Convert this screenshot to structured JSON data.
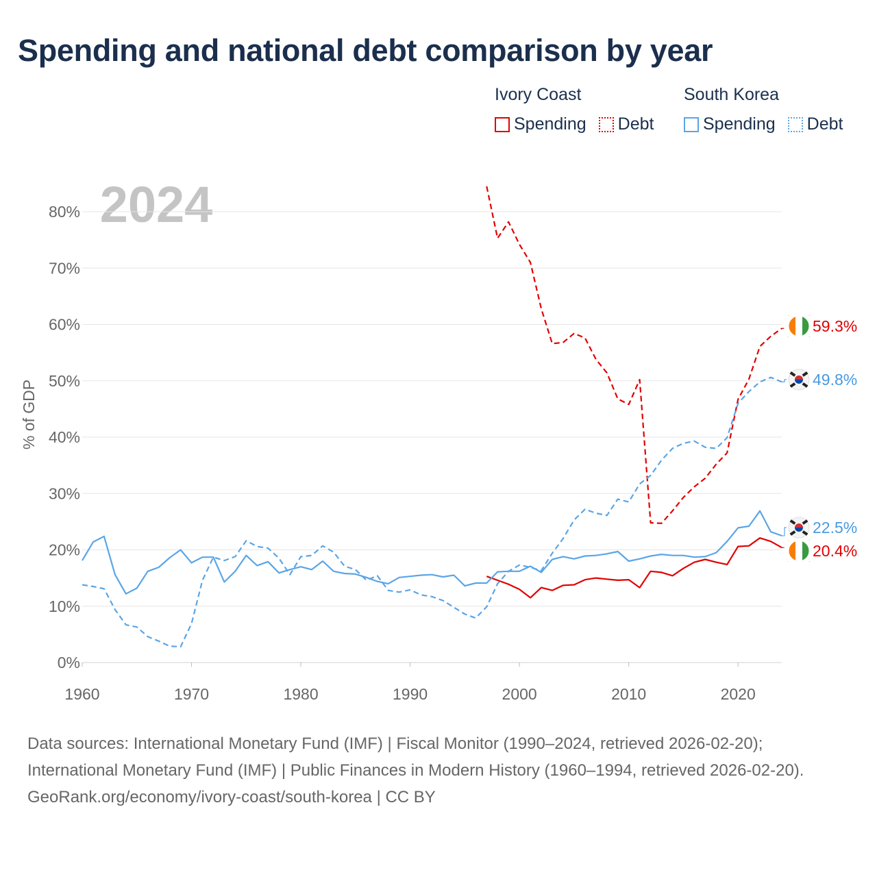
{
  "title": "Spending and national debt comparison by year",
  "legend": {
    "groups": [
      {
        "country": "Ivory Coast",
        "spending_label": "Spending",
        "debt_label": "Debt",
        "color": "#e00000"
      },
      {
        "country": "South Korea",
        "spending_label": "Spending",
        "debt_label": "Debt",
        "color": "#5aa5e6"
      }
    ]
  },
  "footer": {
    "sources": "Data sources: International Monetary Fund (IMF) | Fiscal Monitor (1990–2024, retrieved 2026-02-20); International Monetary Fund (IMF) | Public Finances in Modern History (1960–1994, retrieved 2026-02-20).",
    "url": "GeoRank.org/economy/ivory-coast/south-korea | CC BY"
  },
  "chart_data": {
    "type": "line",
    "year_watermark": "2024",
    "ylabel": "% of GDP",
    "xlabel": "",
    "xlim": [
      1960,
      2024
    ],
    "ylim": [
      0,
      80
    ],
    "x_ticks": [
      1960,
      1970,
      1980,
      1990,
      2000,
      2010,
      2020
    ],
    "y_ticks": [
      0,
      10,
      20,
      30,
      40,
      50,
      60,
      70,
      80
    ],
    "y_tick_labels": [
      "0%",
      "10%",
      "20%",
      "30%",
      "40%",
      "50%",
      "60%",
      "70%",
      "80%"
    ],
    "series": [
      {
        "name": "Ivory Coast Spending",
        "country": "Ivory Coast",
        "metric": "Spending",
        "color": "#e00000",
        "dashed": false,
        "end_label": "20.4%",
        "x": [
          1997,
          1998,
          1999,
          2000,
          2001,
          2002,
          2003,
          2004,
          2005,
          2006,
          2007,
          2008,
          2009,
          2010,
          2011,
          2012,
          2013,
          2014,
          2015,
          2016,
          2017,
          2018,
          2019,
          2020,
          2021,
          2022,
          2023,
          2024
        ],
        "values": [
          15.3,
          14.6,
          13.9,
          13.0,
          11.5,
          13.3,
          12.8,
          13.7,
          13.8,
          14.7,
          15.0,
          14.8,
          14.6,
          14.7,
          13.3,
          16.2,
          16.0,
          15.4,
          16.7,
          17.8,
          18.3,
          17.8,
          17.4,
          20.6,
          20.7,
          22.1,
          21.5,
          20.4
        ]
      },
      {
        "name": "Ivory Coast Debt",
        "country": "Ivory Coast",
        "metric": "Debt",
        "color": "#e00000",
        "dashed": true,
        "end_label": "59.3%",
        "x": [
          1997,
          1998,
          1999,
          2000,
          2001,
          2002,
          2003,
          2004,
          2005,
          2006,
          2007,
          2008,
          2009,
          2010,
          2011,
          2012,
          2013,
          2014,
          2015,
          2016,
          2017,
          2018,
          2019,
          2020,
          2021,
          2022,
          2023,
          2024
        ],
        "values": [
          84.5,
          75.3,
          78.2,
          74.2,
          71.0,
          62.8,
          56.6,
          56.8,
          58.4,
          57.6,
          53.8,
          51.4,
          46.8,
          45.8,
          50.2,
          24.8,
          24.7,
          26.9,
          29.3,
          31.2,
          32.7,
          35.2,
          37.2,
          46.7,
          50.3,
          56.1,
          57.9,
          59.3
        ]
      },
      {
        "name": "South Korea Spending",
        "country": "South Korea",
        "metric": "Spending",
        "color": "#5aa5e6",
        "dashed": false,
        "end_label": "22.5%",
        "x": [
          1960,
          1961,
          1962,
          1963,
          1964,
          1965,
          1966,
          1967,
          1968,
          1969,
          1970,
          1971,
          1972,
          1973,
          1974,
          1975,
          1976,
          1977,
          1978,
          1979,
          1980,
          1981,
          1982,
          1983,
          1984,
          1985,
          1986,
          1987,
          1988,
          1989,
          1990,
          1991,
          1992,
          1993,
          1994,
          1995,
          1996,
          1997,
          1998,
          1999,
          2000,
          2001,
          2002,
          2003,
          2004,
          2005,
          2006,
          2007,
          2008,
          2009,
          2010,
          2011,
          2012,
          2013,
          2014,
          2015,
          2016,
          2017,
          2018,
          2019,
          2020,
          2021,
          2022,
          2023,
          2024
        ],
        "values": [
          18.1,
          21.4,
          22.4,
          15.6,
          12.2,
          13.2,
          16.2,
          16.9,
          18.6,
          20.0,
          17.7,
          18.7,
          18.7,
          14.3,
          16.2,
          19.0,
          17.2,
          17.9,
          15.9,
          16.5,
          17.0,
          16.5,
          18.0,
          16.2,
          15.8,
          15.7,
          15.1,
          14.4,
          14.0,
          15.1,
          15.3,
          15.5,
          15.6,
          15.2,
          15.5,
          13.6,
          14.1,
          14.1,
          16.1,
          16.2,
          16.2,
          17.1,
          16.0,
          18.3,
          18.8,
          18.4,
          18.9,
          19.0,
          19.3,
          19.7,
          18.0,
          18.4,
          18.9,
          19.2,
          19.0,
          19.0,
          18.7,
          18.8,
          19.5,
          21.5,
          23.9,
          24.2,
          26.9,
          23.2,
          22.5
        ]
      },
      {
        "name": "South Korea Debt",
        "country": "South Korea",
        "metric": "Debt",
        "color": "#5aa5e6",
        "dashed": true,
        "end_label": "49.8%",
        "x": [
          1960,
          1961,
          1962,
          1963,
          1964,
          1965,
          1966,
          1967,
          1968,
          1969,
          1970,
          1971,
          1972,
          1973,
          1974,
          1975,
          1976,
          1977,
          1978,
          1979,
          1980,
          1981,
          1982,
          1983,
          1984,
          1985,
          1986,
          1987,
          1988,
          1989,
          1990,
          1991,
          1992,
          1993,
          1994,
          1995,
          1996,
          1997,
          1998,
          1999,
          2000,
          2001,
          2002,
          2003,
          2004,
          2005,
          2006,
          2007,
          2008,
          2009,
          2010,
          2011,
          2012,
          2013,
          2014,
          2015,
          2016,
          2017,
          2018,
          2019,
          2020,
          2021,
          2022,
          2023,
          2024
        ],
        "values": [
          13.8,
          13.5,
          13.1,
          9.4,
          6.7,
          6.3,
          4.6,
          3.8,
          2.9,
          2.8,
          6.9,
          14.6,
          18.7,
          18.1,
          18.8,
          21.6,
          20.6,
          20.3,
          18.5,
          15.6,
          18.8,
          19.0,
          20.7,
          19.6,
          17.1,
          16.5,
          14.6,
          15.4,
          12.8,
          12.5,
          12.9,
          12.0,
          11.7,
          11.0,
          9.8,
          8.6,
          7.9,
          9.9,
          14.0,
          16.2,
          17.3,
          16.9,
          16.3,
          19.4,
          22.0,
          25.3,
          27.2,
          26.5,
          26.1,
          29.0,
          28.5,
          31.7,
          33.2,
          35.9,
          38.0,
          38.9,
          39.3,
          38.2,
          38.0,
          39.9,
          46.0,
          48.1,
          49.8,
          50.6,
          49.8
        ]
      }
    ]
  }
}
